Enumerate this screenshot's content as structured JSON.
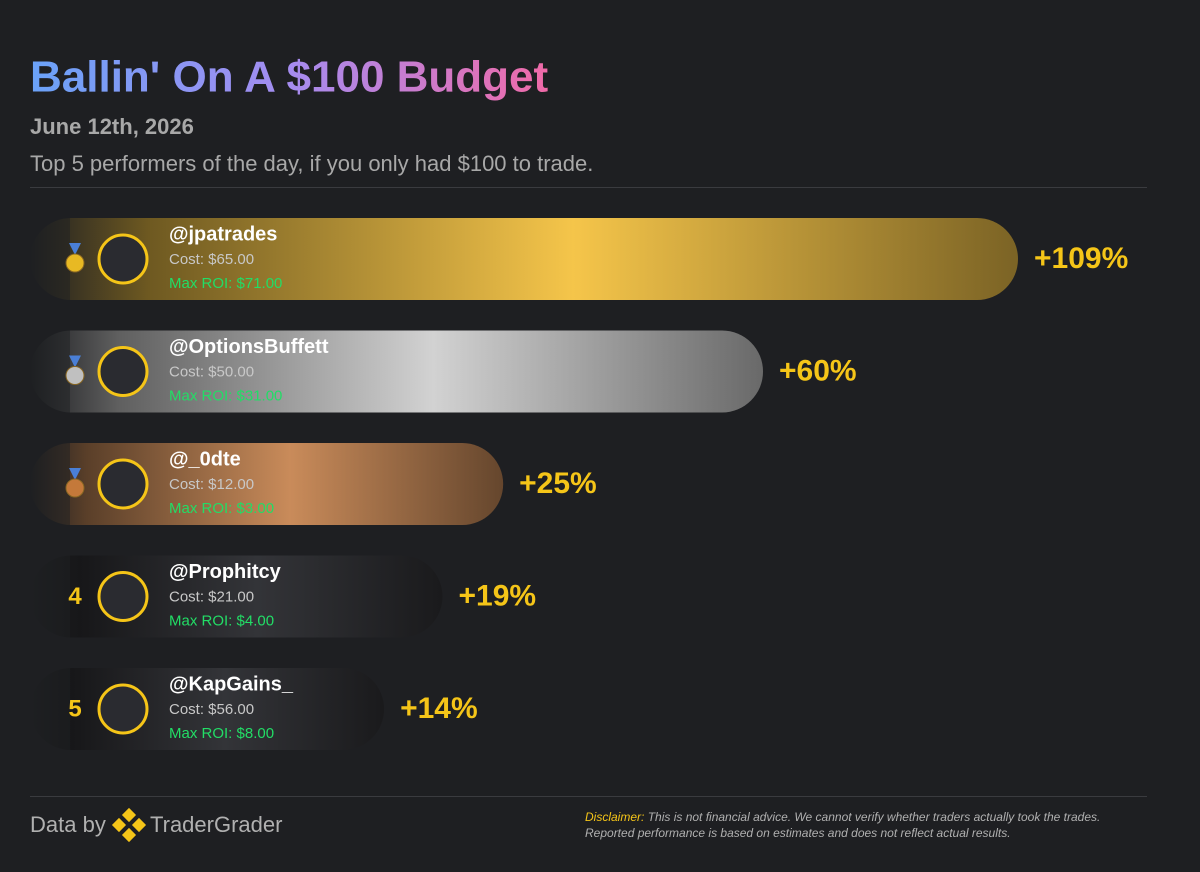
{
  "chart_data": {
    "type": "bar",
    "title": "Ballin' On A $100 Budget",
    "subtitle": "June 12th, 2026",
    "description": "Top 5 performers of the day, if you only had $100 to trade.",
    "categories": [
      "@jpatrades",
      "@OptionsBuffett",
      "@_0dte",
      "@Prophitcy",
      "@KapGains_"
    ],
    "values": [
      109,
      60,
      25,
      19,
      14
    ],
    "value_labels": [
      "+109%",
      "+60%",
      "+25%",
      "+19%",
      "+14%"
    ],
    "costs": [
      "Cost: $65.00",
      "Cost: $50.00",
      "Cost: $12.00",
      "Cost: $21.00",
      "Cost: $56.00"
    ],
    "max_roi": [
      "Max ROI: $71.00",
      "Max ROI: $31.00",
      "Max ROI: $3.00",
      "Max ROI: $4.00",
      "Max ROI: $8.00"
    ],
    "ranks": [
      null,
      null,
      null,
      4,
      5
    ],
    "colors": [
      "#f5c54a",
      "#d2d2d2",
      "#c98b5a",
      "#333438",
      "#333438"
    ]
  },
  "footer": {
    "source_prefix": "Data by",
    "source": "TraderGrader",
    "disclaimer_label": "Disclaimer:",
    "disclaimer": "This is not financial advice. We cannot verify whether traders actually took the trades. Reported performance is based on estimates and does not reflect actual results."
  }
}
